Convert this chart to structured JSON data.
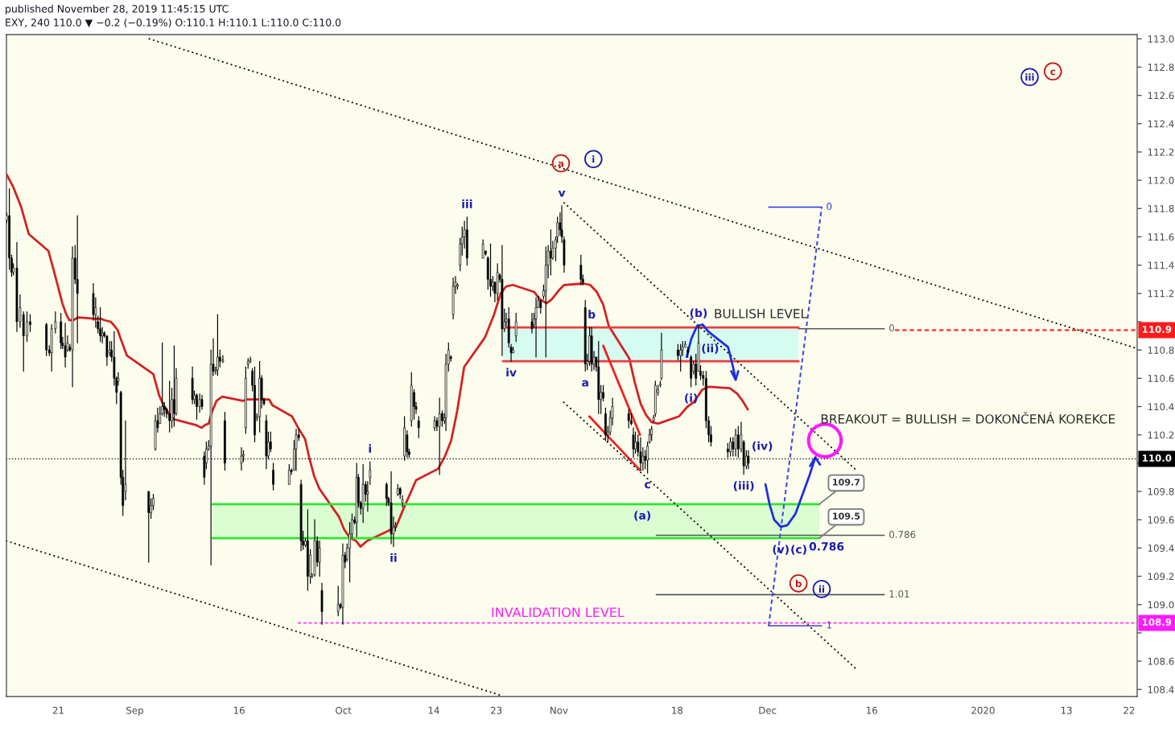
{
  "chart_data": {
    "type": "candlestick",
    "title": "published November 28, 2019 11:45:15 UTC",
    "subtitle": "EXY, 240 110.0 ▼ −0.2 (−0.19%) O:110.1 H:110.1 L:110.0 C:110.0",
    "color": "#000000",
    "x": [
      "2019-08-13T14:00",
      "2019-08-13T23:00",
      "2019-08-14T07:00",
      "2019-08-14T13:00",
      "2019-08-15T01:00",
      "2019-08-15T12:00",
      "2019-08-16T00:00",
      "2019-08-16T12:00",
      "2019-08-16T23:00",
      "2019-08-19T07:00",
      "2019-08-19T17:00",
      "2019-08-20T01:00",
      "2019-08-20T14:00",
      "2019-08-21T09:00",
      "2019-08-21T15:00",
      "2019-08-22T00:00",
      "2019-08-22T08:00",
      "2019-08-22T16:00",
      "2019-08-23T01:00",
      "2019-08-23T10:00",
      "2019-08-23T18:00",
      "2019-08-26T01:00",
      "2019-08-26T09:00",
      "2019-08-26T17:00",
      "2019-08-27T01:00",
      "2019-08-27T08:00",
      "2019-08-27T15:00",
      "2019-08-28T00:00",
      "2019-08-28T10:00",
      "2019-08-28T16:00",
      "2019-08-29T01:00",
      "2019-08-29T09:00",
      "2019-08-29T15:00",
      "2019-08-30T00:00",
      "2019-08-30T07:00",
      "2019-08-30T16:00",
      "2019-09-03T00:00",
      "2019-09-03T08:00",
      "2019-09-03T16:00",
      "2019-09-03T23:00",
      "2019-09-04T07:00",
      "2019-09-04T15:00",
      "2019-09-04T23:00",
      "2019-09-05T06:00",
      "2019-09-05T14:00",
      "2019-09-06T00:00",
      "2019-09-06T08:00",
      "2019-09-06T16:00",
      "2019-09-06T23:00",
      "2019-09-09T07:00",
      "2019-09-09T14:00",
      "2019-09-09T22:00",
      "2019-09-10T08:00",
      "2019-09-10T16:00",
      "2019-09-11T00:00",
      "2019-09-11T07:00",
      "2019-09-11T15:00",
      "2019-09-11T23:00",
      "2019-09-12T07:00",
      "2019-09-12T15:00",
      "2019-09-12T22:00",
      "2019-09-13T06:00",
      "2019-09-13T16:00",
      "2019-09-13T23:00",
      "2019-09-16T08:00",
      "2019-09-16T15:00",
      "2019-09-16T23:00",
      "2019-09-17T07:00",
      "2019-09-17T15:00",
      "2019-09-17T22:00",
      "2019-09-18T06:00",
      "2019-09-18T14:00",
      "2019-09-18T23:00",
      "2019-09-19T06:00",
      "2019-09-19T14:00",
      "2019-09-19T22:00",
      "2019-09-20T05:00",
      "2019-09-20T13:00",
      "2019-09-20T22:00",
      "2019-09-23T05:00",
      "2019-09-23T13:00",
      "2019-09-23T22:00",
      "2019-09-24T05:00",
      "2019-09-24T14:00",
      "2019-09-24T22:00",
      "2019-09-25T05:00",
      "2019-09-25T13:00",
      "2019-09-25T21:00",
      "2019-09-26T06:00",
      "2019-09-26T12:00",
      "2019-09-26T21:00",
      "2019-09-27T06:00",
      "2019-09-27T14:00",
      "2019-09-27T22:00",
      "2019-09-30T06:00",
      "2019-09-30T14:00",
      "2019-09-30T22:00",
      "2019-10-01T06:00",
      "2019-10-01T13:00",
      "2019-10-01T22:00",
      "2019-10-02T06:00",
      "2019-10-02T15:00",
      "2019-10-02T22:00",
      "2019-10-03T04:00",
      "2019-10-03T12:00",
      "2019-10-03T20:00",
      "2019-10-04T05:00",
      "2019-10-04T12:00",
      "2019-10-04T20:00",
      "2019-10-07T05:00",
      "2019-10-07T12:00",
      "2019-10-07T21:00",
      "2019-10-08T05:00",
      "2019-10-08T12:00",
      "2019-10-08T20:00",
      "2019-10-09T04:00",
      "2019-10-09T12:00",
      "2019-10-09T19:00",
      "2019-10-10T04:00",
      "2019-10-10T11:00",
      "2019-10-10T19:00",
      "2019-10-11T04:00",
      "2019-10-11T11:00",
      "2019-10-11T20:00",
      "2019-10-14T03:00",
      "2019-10-14T11:00",
      "2019-10-14T20:00",
      "2019-10-15T05:00",
      "2019-10-15T13:00",
      "2019-10-15T18:00",
      "2019-10-16T03:00",
      "2019-10-16T11:00",
      "2019-10-16T19:00",
      "2019-10-17T03:00",
      "2019-10-17T10:00",
      "2019-10-17T19:00",
      "2019-10-18T02:00",
      "2019-10-18T10:00",
      "2019-10-18T19:00",
      "2019-10-21T02:00",
      "2019-10-21T11:00",
      "2019-10-21T19:00",
      "2019-10-22T04:00",
      "2019-10-22T12:00",
      "2019-10-22T19:00",
      "2019-10-23T04:00",
      "2019-10-23T12:00",
      "2019-10-23T20:00",
      "2019-10-24T04:00",
      "2019-10-24T10:00",
      "2019-10-24T19:00",
      "2019-10-25T03:00",
      "2019-10-25T10:00",
      "2019-10-25T20:00",
      "2019-10-28T03:00",
      "2019-10-28T10:00",
      "2019-10-28T17:00",
      "2019-10-29T01:00",
      "2019-10-29T09:00",
      "2019-10-29T19:00",
      "2019-10-30T03:00",
      "2019-10-30T11:00",
      "2019-10-30T20:00",
      "2019-10-31T03:00",
      "2019-10-31T13:00",
      "2019-10-31T19:00",
      "2019-11-01T04:00",
      "2019-11-01T10:00",
      "2019-11-01T18:00",
      "2019-11-04T04:00",
      "2019-11-04T11:00",
      "2019-11-04T19:00",
      "2019-11-05T02:00",
      "2019-11-05T10:00",
      "2019-11-05T17:00",
      "2019-11-06T01:00",
      "2019-11-06T09:00",
      "2019-11-06T17:00",
      "2019-11-07T01:00",
      "2019-11-07T09:00",
      "2019-11-07T17:00",
      "2019-11-08T01:00",
      "2019-11-08T09:00",
      "2019-11-08T17:00",
      "2019-11-11T01:00",
      "2019-11-11T10:00",
      "2019-11-11T17:00",
      "2019-11-12T00:00",
      "2019-11-12T09:00",
      "2019-11-12T18:00",
      "2019-11-13T02:00",
      "2019-11-13T10:00",
      "2019-11-13T18:00",
      "2019-11-14T01:00",
      "2019-11-14T08:00",
      "2019-11-14T15:00",
      "2019-11-14T21:00",
      "2019-11-15T06:00",
      "2019-11-15T14:00",
      "2019-11-15T18:00",
      "2019-11-18T03:00",
      "2019-11-18T12:00",
      "2019-11-18T19:00",
      "2019-11-19T04:00",
      "2019-11-19T13:00",
      "2019-11-20T00:00",
      "2019-11-20T09:00",
      "2019-11-20T17:00",
      "2019-11-21T02:00",
      "2019-11-21T09:00",
      "2019-11-21T18:00",
      "2019-11-22T04:00",
      "2019-11-22T13:00",
      "2019-11-22T21:00",
      "2019-11-25T07:00",
      "2019-11-25T16:00",
      "2019-11-26T01:00",
      "2019-11-26T10:00",
      "2019-11-26T19:00",
      "2019-11-27T05:00",
      "2019-11-27T14:00",
      "2019-11-27T23:00",
      "2019-11-28T06:00"
    ],
    "ohlc": [
      [
        111.72,
        111.77,
        111.7,
        111.75
      ],
      [
        111.75,
        111.94,
        111.37,
        111.45
      ],
      [
        111.45,
        111.47,
        111.32,
        111.35
      ],
      [
        111.35,
        111.41,
        111.33,
        111.38
      ],
      [
        111.38,
        111.56,
        110.93,
        111.0
      ],
      [
        111.0,
        111.19,
        110.96,
        111.1
      ],
      [
        111.05,
        111.07,
        110.65,
        110.9
      ],
      [
        110.9,
        111.07,
        110.86,
        111.0
      ],
      [
        111.0,
        111.05,
        110.93,
        110.98
      ],
      [
        110.98,
        110.99,
        110.76,
        110.8
      ],
      [
        110.8,
        110.83,
        110.76,
        110.78
      ],
      [
        110.78,
        110.98,
        110.65,
        110.95
      ],
      [
        110.95,
        111.07,
        110.92,
        111.0
      ],
      [
        111.0,
        111.06,
        110.81,
        110.85
      ],
      [
        110.85,
        110.89,
        110.81,
        110.83
      ],
      [
        110.83,
        110.99,
        110.68,
        110.75
      ],
      [
        110.8,
        110.9,
        110.79,
        110.85
      ],
      [
        110.82,
        110.84,
        110.79,
        110.8
      ],
      [
        110.8,
        111.53,
        110.54,
        111.45
      ],
      [
        111.45,
        111.54,
        111.27,
        111.3
      ],
      [
        111.3,
        111.75,
        110.85,
        111.2
      ],
      [
        111.2,
        111.27,
        111.01,
        111.05
      ],
      [
        111.05,
        111.17,
        110.96,
        111.1
      ],
      [
        111.0,
        111.04,
        110.92,
        110.95
      ],
      [
        110.95,
        111.1,
        110.86,
        110.9
      ],
      [
        110.9,
        110.96,
        110.85,
        110.92
      ],
      [
        110.92,
        110.93,
        110.89,
        110.9
      ],
      [
        110.9,
        110.9,
        110.69,
        110.75
      ],
      [
        110.78,
        110.86,
        110.76,
        110.8
      ],
      [
        110.8,
        110.86,
        110.72,
        110.75
      ],
      [
        110.75,
        110.93,
        110.55,
        110.6
      ],
      [
        110.6,
        110.61,
        110.42,
        110.5
      ],
      [
        110.58,
        110.64,
        110.55,
        110.6
      ],
      [
        110.5,
        110.51,
        109.85,
        109.9
      ],
      [
        109.9,
        109.95,
        109.63,
        109.7
      ],
      [
        109.8,
        110.3,
        109.74,
        109.85
      ],
      [
        109.8,
        109.8,
        109.3,
        109.65
      ],
      [
        109.65,
        109.75,
        109.61,
        109.7
      ],
      [
        109.7,
        109.78,
        109.67,
        109.75
      ],
      [
        110.1,
        110.34,
        110.09,
        110.3
      ],
      [
        110.3,
        110.39,
        110.22,
        110.25
      ],
      [
        110.28,
        110.4,
        110.28,
        110.35
      ],
      [
        110.35,
        110.85,
        110.34,
        110.4
      ],
      [
        110.4,
        110.43,
        110.33,
        110.38
      ],
      [
        110.38,
        110.39,
        110.32,
        110.35
      ],
      [
        110.35,
        110.58,
        110.22,
        110.3
      ],
      [
        110.3,
        110.53,
        110.25,
        110.45
      ],
      [
        110.45,
        110.83,
        110.26,
        110.35
      ],
      [
        110.35,
        110.67,
        110.34,
        110.6
      ],
      [
        110.6,
        110.68,
        110.42,
        110.45
      ],
      [
        110.45,
        110.51,
        110.42,
        110.48
      ],
      [
        110.48,
        110.49,
        110.31,
        110.4
      ],
      [
        110.4,
        110.49,
        110.36,
        110.45
      ],
      [
        110.45,
        110.48,
        110.38,
        110.4
      ],
      [
        110.05,
        110.08,
        109.85,
        109.9
      ],
      [
        110.0,
        110.15,
        109.96,
        110.1
      ],
      [
        110.1,
        110.16,
        110.09,
        110.12
      ],
      [
        110.12,
        110.8,
        109.28,
        110.7
      ],
      [
        110.7,
        110.88,
        110.62,
        110.65
      ],
      [
        110.65,
        110.68,
        110.63,
        110.66
      ],
      [
        110.66,
        111.05,
        110.62,
        110.75
      ],
      [
        110.75,
        110.8,
        110.68,
        110.72
      ],
      [
        110.72,
        110.76,
        110.71,
        110.73
      ],
      [
        110.3,
        110.36,
        109.95,
        110.0
      ],
      [
        110.0,
        110.11,
        109.95,
        110.05
      ],
      [
        110.05,
        110.09,
        110.01,
        110.06
      ],
      [
        110.25,
        110.68,
        110.21,
        110.6
      ],
      [
        110.7,
        110.74,
        110.67,
        110.72
      ],
      [
        110.72,
        110.75,
        110.71,
        110.73
      ],
      [
        110.65,
        110.67,
        110.51,
        110.55
      ],
      [
        110.55,
        110.68,
        110.15,
        110.2
      ],
      [
        110.32,
        110.35,
        110.3,
        110.33
      ],
      [
        110.33,
        110.72,
        110.22,
        110.6
      ],
      [
        110.6,
        110.62,
        110.39,
        110.45
      ],
      [
        110.45,
        110.46,
        110.41,
        110.42
      ],
      [
        110.3,
        110.34,
        109.96,
        110.05
      ],
      [
        110.05,
        110.22,
        110.03,
        110.15
      ],
      [
        110.15,
        110.22,
        110.08,
        110.1
      ],
      [
        109.95,
        110.0,
        109.81,
        109.85
      ],
      [
        109.85,
        109.99,
        109.85,
        109.95
      ],
      [
        109.95,
        109.96,
        109.92,
        109.94
      ],
      [
        109.95,
        110.16,
        109.95,
        110.1
      ],
      [
        110.1,
        110.24,
        109.95,
        110.2
      ],
      [
        110.2,
        110.24,
        110.16,
        110.18
      ],
      [
        109.85,
        109.88,
        109.38,
        109.45
      ],
      [
        109.45,
        109.52,
        109.39,
        109.42
      ],
      [
        109.42,
        109.47,
        109.41,
        109.45
      ],
      [
        109.45,
        109.67,
        109.1,
        109.2
      ],
      [
        109.2,
        109.39,
        109.15,
        109.35
      ],
      [
        109.2,
        109.22,
        109.19,
        109.21
      ],
      [
        109.21,
        109.6,
        109.2,
        109.45
      ],
      [
        109.45,
        109.48,
        109.27,
        109.3
      ],
      [
        109.3,
        109.45,
        109.2,
        109.4
      ],
      [
        109.1,
        109.15,
        108.86,
        108.95
      ],
      [
        108.95,
        109.13,
        108.92,
        109.0
      ],
      [
        109.0,
        109.01,
        108.97,
        108.98
      ],
      [
        108.98,
        109.43,
        108.86,
        109.35
      ],
      [
        109.35,
        109.37,
        109.26,
        109.3
      ],
      [
        109.32,
        109.43,
        109.31,
        109.4
      ],
      [
        109.4,
        109.58,
        109.16,
        109.5
      ],
      [
        109.5,
        109.64,
        109.47,
        109.6
      ],
      [
        109.6,
        109.62,
        109.57,
        109.58
      ],
      [
        109.58,
        110.0,
        109.48,
        109.9
      ],
      [
        109.9,
        109.92,
        109.69,
        109.72
      ],
      [
        109.72,
        109.73,
        109.64,
        109.68
      ],
      [
        109.68,
        109.99,
        109.58,
        109.85
      ],
      [
        109.85,
        109.87,
        109.73,
        109.78
      ],
      [
        109.78,
        109.87,
        109.66,
        109.8
      ],
      [
        109.9,
        110.01,
        109.85,
        109.95
      ],
      [
        109.85,
        109.86,
        109.7,
        109.75
      ],
      [
        109.75,
        109.76,
        109.7,
        109.72
      ],
      [
        109.72,
        109.94,
        109.43,
        109.5
      ],
      [
        109.5,
        109.62,
        109.41,
        109.55
      ],
      [
        109.55,
        109.58,
        109.52,
        109.56
      ],
      [
        109.78,
        109.85,
        109.77,
        109.82
      ],
      [
        109.82,
        109.83,
        109.75,
        109.78
      ],
      [
        109.72,
        109.77,
        109.69,
        109.74
      ],
      [
        110.05,
        110.33,
        110.02,
        110.25
      ],
      [
        110.2,
        110.23,
        110.04,
        110.08
      ],
      [
        110.08,
        110.1,
        110.04,
        110.06
      ],
      [
        110.3,
        110.64,
        110.26,
        110.55
      ],
      [
        110.5,
        110.52,
        110.31,
        110.4
      ],
      [
        110.4,
        110.43,
        110.35,
        110.38
      ],
      [
        110.3,
        110.33,
        110.18,
        110.25
      ],
      [
        110.25,
        110.33,
        110.23,
        110.3
      ],
      [
        110.3,
        110.32,
        110.23,
        110.26
      ],
      [
        110.26,
        110.46,
        109.92,
        110.35
      ],
      [
        110.35,
        110.37,
        110.26,
        110.3
      ],
      [
        110.3,
        110.35,
        110.28,
        110.32
      ],
      [
        110.32,
        110.77,
        110.23,
        110.7
      ],
      [
        110.7,
        110.85,
        110.65,
        110.8
      ],
      [
        110.75,
        110.76,
        110.72,
        110.74
      ],
      [
        111.05,
        111.31,
        111.02,
        111.25
      ],
      [
        111.25,
        111.32,
        111.2,
        111.28
      ],
      [
        111.25,
        111.27,
        111.23,
        111.26
      ],
      [
        111.4,
        111.59,
        111.36,
        111.55
      ],
      [
        111.55,
        111.67,
        111.47,
        111.6
      ],
      [
        111.6,
        111.71,
        111.52,
        111.65
      ],
      [
        111.65,
        111.74,
        111.4,
        111.45
      ],
      [
        111.45,
        111.58,
        111.45,
        111.55
      ],
      [
        111.5,
        111.5,
        111.47,
        111.48
      ],
      [
        111.45,
        111.46,
        111.23,
        111.3
      ],
      [
        111.3,
        111.55,
        111.18,
        111.25
      ],
      [
        111.25,
        111.32,
        111.22,
        111.28
      ],
      [
        111.28,
        111.28,
        111.14,
        111.2
      ],
      [
        111.2,
        111.41,
        111.15,
        111.35
      ],
      [
        111.33,
        111.34,
        111.28,
        111.3
      ],
      [
        111.3,
        111.54,
        110.76,
        110.95
      ],
      [
        110.95,
        111.09,
        110.93,
        111.0
      ],
      [
        111.0,
        111.06,
        110.97,
        111.02
      ],
      [
        111.02,
        111.1,
        110.82,
        110.85
      ],
      [
        110.82,
        110.84,
        110.72,
        110.78
      ],
      [
        110.78,
        110.82,
        110.78,
        110.8
      ],
      [
        110.9,
        111.06,
        110.86,
        111.0
      ],
      [
        111.0,
        111.06,
        110.92,
        110.95
      ],
      [
        110.98,
        111.06,
        110.96,
        111.02
      ],
      [
        111.02,
        111.17,
        110.75,
        111.1
      ],
      [
        111.1,
        111.18,
        111.1,
        111.15
      ],
      [
        111.15,
        111.15,
        111.06,
        111.1
      ],
      [
        111.18,
        111.26,
        111.16,
        111.22
      ],
      [
        111.22,
        111.53,
        110.75,
        111.4
      ],
      [
        111.4,
        111.54,
        111.31,
        111.5
      ],
      [
        111.5,
        111.65,
        111.33,
        111.45
      ],
      [
        111.45,
        111.57,
        111.44,
        111.52
      ],
      [
        111.52,
        111.6,
        111.43,
        111.58
      ],
      [
        111.6,
        111.74,
        111.56,
        111.7
      ],
      [
        111.7,
        111.77,
        111.61,
        111.65
      ],
      [
        111.65,
        111.82,
        111.56,
        111.6
      ],
      [
        111.58,
        111.6,
        111.35,
        111.4
      ],
      [
        111.4,
        111.47,
        111.26,
        111.3
      ],
      [
        111.3,
        111.33,
        111.26,
        111.28
      ],
      [
        111.1,
        111.15,
        110.65,
        110.7
      ],
      [
        110.7,
        110.77,
        110.66,
        110.72
      ],
      [
        110.72,
        110.96,
        110.69,
        110.9
      ],
      [
        110.9,
        110.96,
        110.65,
        110.7
      ],
      [
        110.7,
        110.79,
        110.66,
        110.75
      ],
      [
        110.75,
        110.75,
        110.65,
        110.68
      ],
      [
        110.68,
        110.86,
        110.35,
        110.45
      ],
      [
        110.45,
        110.55,
        110.35,
        110.5
      ],
      [
        110.5,
        110.55,
        110.44,
        110.46
      ],
      [
        110.35,
        110.39,
        110.16,
        110.2
      ],
      [
        110.2,
        110.26,
        110.15,
        110.22
      ],
      [
        110.22,
        110.37,
        110.2,
        110.32
      ],
      [
        110.32,
        110.46,
        110.27,
        110.4
      ],
      [
        110.35,
        110.38,
        110.25,
        110.3
      ],
      [
        110.3,
        110.35,
        110.27,
        110.28
      ],
      [
        110.2,
        110.25,
        110.04,
        110.1
      ],
      [
        110.1,
        110.22,
        110.07,
        110.15
      ],
      [
        110.15,
        110.2,
        110.05,
        110.08
      ],
      [
        110.08,
        110.18,
        109.95,
        110.0
      ],
      [
        110.0,
        110.11,
        109.95,
        110.05
      ],
      [
        110.05,
        110.09,
        109.96,
        110.02
      ],
      [
        110.02,
        110.15,
        109.93,
        110.12
      ],
      [
        110.15,
        110.24,
        110.14,
        110.2
      ],
      [
        110.2,
        110.26,
        110.16,
        110.24
      ],
      [
        110.3,
        110.34,
        110.29,
        110.32
      ],
      [
        110.35,
        110.58,
        110.33,
        110.55
      ],
      [
        110.5,
        110.55,
        110.48,
        110.52
      ],
      [
        110.55,
        110.58,
        110.54,
        110.56
      ],
      [
        110.6,
        110.92,
        110.59,
        110.8
      ],
      [
        110.8,
        110.84,
        110.73,
        110.76
      ],
      [
        110.76,
        110.84,
        110.65,
        110.8
      ],
      [
        110.8,
        110.86,
        110.76,
        110.82
      ],
      [
        110.82,
        110.86,
        110.82,
        110.84
      ],
      [
        110.8,
        110.82,
        110.75,
        110.78
      ],
      [
        110.75,
        110.76,
        110.54,
        110.6
      ],
      [
        110.65,
        110.72,
        110.63,
        110.7
      ],
      [
        110.7,
        110.77,
        110.55,
        110.6
      ],
      [
        110.65,
        110.97,
        110.65,
        110.85
      ],
      [
        110.65,
        110.69,
        110.59,
        110.62
      ],
      [
        110.62,
        110.65,
        110.55,
        110.6
      ],
      [
        110.6,
        110.65,
        110.25,
        110.3
      ],
      [
        110.3,
        110.33,
        110.15,
        110.2
      ],
      [
        110.2,
        110.26,
        110.12,
        110.15
      ],
      [
        110.1,
        110.14,
        110.04,
        110.08
      ],
      [
        110.08,
        110.18,
        110.05,
        110.15
      ],
      [
        110.15,
        110.18,
        110.05,
        110.1
      ],
      [
        110.1,
        110.24,
        110.05,
        110.2
      ],
      [
        110.2,
        110.26,
        110.04,
        110.1
      ],
      [
        110.1,
        110.29,
        110.08,
        110.2
      ],
      [
        110.15,
        110.16,
        109.92,
        109.98
      ],
      [
        109.98,
        110.09,
        109.96,
        110.05
      ],
      [
        110.05,
        110.09,
        109.96,
        110.0
      ]
    ],
    "series": [
      {
        "type": "line",
        "color": "#d6fcf1",
        "x": [
          "2019-10-23T23:00",
          "2019-12-05T11:00"
        ],
        "values": [
          null,
          null
        ],
        "lower": [
          110.72,
          110.72
        ],
        "upper": [
          110.96,
          110.96
        ]
      },
      {
        "type": "line",
        "color": "#dbfdd2",
        "x": [
          "2019-09-12T04:00",
          "2019-12-08T11:00"
        ],
        "values": [
          null,
          null
        ],
        "lower": [
          109.47,
          109.47
        ],
        "upper": [
          109.71,
          109.71
        ]
      },
      {
        "type": "line",
        "color": "#d32222",
        "x": [
          "2019-08-13T14:00",
          "2019-08-14T13:00",
          "2019-08-15T16:00",
          "2019-08-16T18:00",
          "2019-08-19T14:00",
          "2019-08-20T06:00",
          "2019-08-20T19:00",
          "2019-08-21T14:00",
          "2019-08-22T04:00",
          "2019-08-22T14:00",
          "2019-08-23T03:00",
          "2019-08-23T20:00",
          "2019-08-26T09:00",
          "2019-08-27T04:00",
          "2019-08-27T17:00",
          "2019-08-28T13:00",
          "2019-08-29T02:00",
          "2019-08-29T13:00",
          "2019-08-30T01:00",
          "2019-08-30T21:00",
          "2019-09-03T16:00",
          "2019-09-04T12:00",
          "2019-09-05T01:00",
          "2019-09-06T03:00",
          "2019-09-06T16:00",
          "2019-09-09T18:00",
          "2019-09-10T14:00",
          "2019-09-11T03:00",
          "2019-09-11T15:00",
          "2019-09-12T02:00",
          "2019-09-12T18:00",
          "2019-09-13T14:00",
          "2019-09-16T13:00",
          "2019-09-17T02:00",
          "2019-09-18T08:00",
          "2019-09-19T14:00",
          "2019-09-20T08:00",
          "2019-09-20T19:00",
          "2019-09-23T15:00",
          "2019-09-24T12:00",
          "2019-09-25T12:00",
          "2019-09-26T02:00",
          "2019-09-26T19:00",
          "2019-09-27T13:00",
          "2019-09-30T09:00",
          "2019-10-01T03:00",
          "2019-10-01T23:00",
          "2019-10-02T20:00",
          "2019-10-03T11:00",
          "2019-10-04T10:00",
          "2019-10-07T10:00",
          "2019-10-08T14:00",
          "2019-10-09T18:00",
          "2019-10-10T18:00",
          "2019-10-11T11:00",
          "2019-10-14T15:00",
          "2019-10-15T15:00",
          "2019-10-16T12:00",
          "2019-10-17T09:00",
          "2019-10-18T09:00",
          "2019-10-21T09:00",
          "2019-10-22T16:00",
          "2019-10-23T15:00",
          "2019-10-24T10:00",
          "2019-10-25T09:00",
          "2019-10-28T11:00",
          "2019-10-29T06:00",
          "2019-10-30T05:00",
          "2019-10-31T00:00",
          "2019-10-31T23:00",
          "2019-11-01T18:00",
          "2019-11-04T13:00",
          "2019-11-05T12:00",
          "2019-11-06T11:00",
          "2019-11-07T09:00",
          "2019-11-08T04:00",
          "2019-11-11T03:00",
          "2019-11-11T22:00",
          "2019-11-12T18:00",
          "2019-11-13T13:00",
          "2019-11-14T08:00",
          "2019-11-15T07:00",
          "2019-11-18T06:00",
          "2019-11-19T12:00",
          "2019-11-20T09:00",
          "2019-11-21T15:00",
          "2019-11-22T13:00",
          "2019-11-25T14:00",
          "2019-11-26T16:00",
          "2019-11-27T10:00",
          "2019-11-28T04:00"
        ],
        "values": [
          112.04,
          111.95,
          111.81,
          111.62,
          111.5,
          111.38,
          111.28,
          111.13,
          111.05,
          111.01,
          111.01,
          111.03,
          111.02,
          111.02,
          111.01,
          111.0,
          110.97,
          110.94,
          110.87,
          110.76,
          110.63,
          110.48,
          110.42,
          110.33,
          110.31,
          110.27,
          110.25,
          110.27,
          110.28,
          110.36,
          110.44,
          110.47,
          110.44,
          110.45,
          110.45,
          110.45,
          110.45,
          110.41,
          110.33,
          110.25,
          110.17,
          110.04,
          109.91,
          109.82,
          109.62,
          109.53,
          109.47,
          109.45,
          109.41,
          109.45,
          109.52,
          109.55,
          109.69,
          109.8,
          109.88,
          109.96,
          110.05,
          110.16,
          110.37,
          110.68,
          110.89,
          111.05,
          111.2,
          111.25,
          111.26,
          111.21,
          111.16,
          111.13,
          111.16,
          111.22,
          111.26,
          111.27,
          111.26,
          111.21,
          111.12,
          110.97,
          110.74,
          110.57,
          110.42,
          110.34,
          110.29,
          110.28,
          110.33,
          110.4,
          110.43,
          110.52,
          110.54,
          110.53,
          110.49,
          110.44,
          110.38
        ]
      },
      {
        "type": "line",
        "color": "#ef3b3b",
        "x": [
          "2019-10-23T23:00",
          "2019-12-05T11:00"
        ],
        "values": [
          110.96,
          110.96
        ]
      },
      {
        "type": "line",
        "color": "#ef3b3b",
        "x": [
          "2019-10-23T23:00",
          "2019-12-05T11:00"
        ],
        "values": [
          110.72,
          110.72
        ]
      },
      {
        "type": "line",
        "color": "#2ee62e",
        "x": [
          "2019-09-12T04:00",
          "2019-12-08T11:00"
        ],
        "values": [
          109.71,
          109.71
        ],
        "value_labels": [
          null,
          "109.7"
        ]
      },
      {
        "type": "line",
        "color": "#2ee62e",
        "x": [
          "2019-09-12T04:00",
          "2019-12-08T11:00"
        ],
        "values": [
          109.47,
          109.47
        ],
        "value_labels": [
          null,
          "109.5"
        ]
      },
      {
        "type": "line",
        "color": "#1a1a1a",
        "line_style": "dotted",
        "x": [
          "2019-09-03T02:00",
          "2020-01-23T04:00"
        ],
        "values": [
          113.0,
          110.81
        ]
      },
      {
        "type": "line",
        "color": "#1a1a1a",
        "line_style": "dotted",
        "x": [
          "2019-08-13T13:00",
          "2019-10-23T13:00"
        ],
        "values": [
          109.45,
          108.36
        ]
      },
      {
        "type": "line",
        "color": "#1a1a1a",
        "line_style": "dotted",
        "x": [
          "2019-11-01T18:00",
          "2019-12-14T00:00"
        ],
        "values": [
          111.84,
          109.94
        ]
      },
      {
        "type": "line",
        "color": "#1a1a1a",
        "line_style": "dotted",
        "x": [
          "2019-11-01T17:00",
          "2019-12-13T21:00"
        ],
        "values": [
          110.43,
          108.54
        ]
      },
      {
        "type": "line",
        "color": "#f02020",
        "x": [
          "2019-11-05T09:00",
          "2019-11-12T16:00"
        ],
        "values": [
          110.33,
          109.95
        ]
      },
      {
        "type": "line",
        "color": "#f02020",
        "x": [
          "2019-11-07T09:00",
          "2019-11-12T16:00"
        ],
        "values": [
          110.83,
          110.2
        ]
      },
      {
        "type": "line",
        "name": "0",
        "color": "#555555",
        "x": [
          "2019-12-05T11:00",
          "2019-12-17T19:00"
        ],
        "values": [
          110.95,
          110.95
        ]
      },
      {
        "type": "line",
        "name": "0.786",
        "color": "#555555",
        "x": [
          "2019-11-15T00:00",
          "2019-12-17T19:00"
        ],
        "values": [
          109.49,
          109.49
        ]
      },
      {
        "type": "line",
        "name": "1.01",
        "color": "#555555",
        "x": [
          "2019-11-15T00:00",
          "2019-12-17T19:00"
        ],
        "values": [
          109.07,
          109.07
        ]
      },
      {
        "type": "line",
        "color": "#ff1a1a",
        "line_style": "dashed",
        "x": [
          "2019-12-19T08:00",
          "2020-01-23T04:00"
        ],
        "values": [
          110.94,
          110.94
        ],
        "value_labels": [
          null,
          "110.9"
        ]
      },
      {
        "type": "line",
        "name": "INVALIDATION LEVEL",
        "color": "#ff1aff",
        "line_style": "dashed",
        "x": [
          "2019-09-24T11:00",
          "2020-01-23T04:00"
        ],
        "values": [
          108.87,
          108.87
        ],
        "value_labels": [
          null,
          "108.9"
        ]
      },
      {
        "type": "line",
        "color": "#3d4de8",
        "line_style": "dashed",
        "x": [
          "2019-12-01T04:00",
          "2019-12-08T19:00"
        ],
        "values": [
          108.85,
          111.81
        ]
      },
      {
        "type": "line",
        "name": "0",
        "color": "#2233ee",
        "x": [
          "2019-12-01T04:00",
          "2019-12-08T19:00"
        ],
        "values": [
          111.81,
          111.81
        ]
      },
      {
        "type": "line",
        "name": "1",
        "color": "#4a3ad6",
        "x": [
          "2019-12-01T04:00",
          "2019-12-08T19:00"
        ],
        "values": [
          108.85,
          108.85
        ]
      },
      {
        "type": "line",
        "color": "#1f2fe0",
        "x": [
          "2019-11-19T09:00",
          "2019-11-20T01:00",
          "2019-11-20T21:00",
          "2019-11-21T16:00",
          "2019-11-22T12:00",
          "2019-11-25T08:00",
          "2019-11-26T01:00",
          "2019-11-26T10:00"
        ],
        "values": [
          110.75,
          110.88,
          110.97,
          110.98,
          110.93,
          110.82,
          110.68,
          110.59
        ]
      },
      {
        "type": "line",
        "color": "#1f2fe0",
        "x": [
          "2019-11-25T19:00",
          "2019-11-26T10:00",
          "2019-11-26T19:00"
        ],
        "values": [
          110.65,
          110.59,
          110.65
        ]
      },
      {
        "type": "line",
        "color": "#1f2fe0",
        "x": [
          "2019-11-30T17:00",
          "2019-12-01T07:00",
          "2019-12-01T23:00",
          "2019-12-02T22:00",
          "2019-12-03T20:00",
          "2019-12-05T00:00",
          "2019-12-06T03:00",
          "2019-12-07T02:00",
          "2019-12-07T21:00"
        ],
        "values": [
          109.85,
          109.71,
          109.6,
          109.55,
          109.56,
          109.64,
          109.79,
          109.92,
          110.04
        ]
      },
      {
        "type": "line",
        "color": "#1f2fe0",
        "x": [
          "2019-12-07T03:00",
          "2019-12-07T21:00",
          "2019-12-08T13:00"
        ],
        "values": [
          109.98,
          110.04,
          109.99
        ]
      },
      {
        "type": "scatter",
        "marker": "circle",
        "name": "BREAKOUT = BULLISH = DOKONČENÁ KOREKCE",
        "color": "#ff1aff",
        "x": [
          "2019-12-09T06:00"
        ],
        "values": [
          110.16
        ]
      },
      {
        "type": "scatter",
        "marker": "circle",
        "color": "#c01818",
        "x": [
          "2019-11-01T07:00",
          "2019-12-05T11:00",
          "2020-01-11T01:00"
        ],
        "values": [
          112.12,
          109.15,
          112.77
        ],
        "value_labels": [
          "a",
          "b",
          "c"
        ]
      },
      {
        "type": "scatter",
        "marker": "circle",
        "color": "#1a1ab0",
        "x": [
          "2019-11-05T23:00",
          "2019-12-08T19:00",
          "2020-01-07T17:00"
        ],
        "values": [
          112.15,
          109.11,
          112.73
        ],
        "value_labels": [
          "i",
          "ii",
          "iii"
        ]
      }
    ],
    "ref_lines": [
      {
        "axis": "y",
        "value": 110.03,
        "label": "110.0",
        "color": "#000000",
        "line_style": "dotted"
      }
    ],
    "annotations": [
      {
        "text": "BULLISH LEVEL",
        "x": "2019-11-30T00:00",
        "y": 110.96
      },
      {
        "text": "iii",
        "x": "2019-10-18T19:00",
        "y": 111.74
      },
      {
        "text": "v",
        "x": "2019-11-01T10:00",
        "y": 111.82
      },
      {
        "text": "iv",
        "x": "2019-10-25T03:00",
        "y": 110.72
      },
      {
        "text": "i",
        "x": "2019-10-04T20:00",
        "y": 110.01
      },
      {
        "text": "ii",
        "x": "2019-10-08T05:00",
        "y": 109.41
      },
      {
        "text": "b",
        "x": "2019-11-05T17:00",
        "y": 110.96
      },
      {
        "text": "a",
        "x": "2019-11-04T19:00",
        "y": 110.65
      },
      {
        "text": "c",
        "x": "2019-11-13T18:00",
        "y": 109.93
      },
      {
        "text": "(a)",
        "x": "2019-11-13T00:00",
        "y": 109.71
      },
      {
        "text": "(b)",
        "x": "2019-11-21T02:00",
        "y": 110.97
      },
      {
        "text": "(ii)",
        "x": "2019-11-22T18:00",
        "y": 110.72
      },
      {
        "text": "(i)",
        "x": "2019-11-20T00:00",
        "y": 110.54
      },
      {
        "text": "(iii)",
        "x": "2019-11-27T14:00",
        "y": 109.92
      },
      {
        "text": "(iv)",
        "x": "2019-11-30T06:00",
        "y": 110.03
      },
      {
        "text": "(v)",
        "x": "2019-12-02T22:00",
        "y": 109.47
      },
      {
        "text": "(c)",
        "x": "2019-12-05T12:00",
        "y": 109.47
      },
      {
        "text": "0.786",
        "x": "2019-12-09T12:00",
        "y": 109.49
      }
    ],
    "xlim": [
      "2019-08-13T13:00",
      "2020-01-23T04:00"
    ],
    "ylim": [
      108.35,
      113.03
    ],
    "xticks": [
      {
        "value": "2019-08-21",
        "label": "21"
      },
      {
        "value": "2019-09-01",
        "label": "Sep"
      },
      {
        "value": "2019-09-16",
        "label": "16"
      },
      {
        "value": "2019-10-01",
        "label": "Oct"
      },
      {
        "value": "2019-10-14",
        "label": "14"
      },
      {
        "value": "2019-10-23",
        "label": "23"
      },
      {
        "value": "2019-11-01",
        "label": "Nov"
      },
      {
        "value": "2019-11-18",
        "label": "18"
      },
      {
        "value": "2019-12-01",
        "label": "Dec"
      },
      {
        "value": "2019-12-16",
        "label": "16"
      },
      {
        "value": "2020-01-01",
        "label": "2020"
      },
      {
        "value": "2020-01-13",
        "label": "13"
      },
      {
        "value": "2020-01-22",
        "label": "22"
      }
    ],
    "yticks": [
      108.4,
      108.6,
      {
        "value": 108.8,
        "label": null
      },
      {
        "value": 109,
        "label": "109.0"
      },
      109.2,
      109.4,
      109.6,
      109.8,
      {
        "value": 110,
        "label": null
      },
      110.2,
      110.4,
      110.6,
      110.8,
      {
        "value": 111,
        "label": null
      },
      111.2,
      111.4,
      111.6,
      111.8,
      {
        "value": 112,
        "label": "112.0"
      },
      112.2,
      112.4,
      112.6,
      112.8,
      {
        "value": 113,
        "label": "113.0"
      }
    ]
  }
}
